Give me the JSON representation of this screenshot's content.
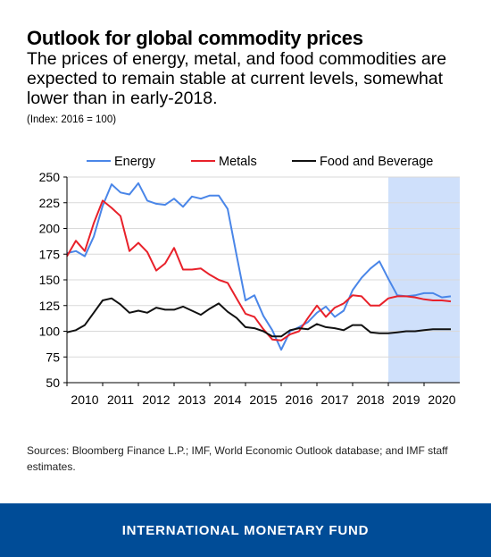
{
  "header": {
    "title": "Outlook for global commodity prices",
    "subtitle": "The prices of energy, metal, and food commodities are expected to remain stable at current levels, somewhat lower than in early-2018.",
    "note": "(Index: 2016 = 100)"
  },
  "chart_data": {
    "type": "line",
    "x_unit": "quarter",
    "x_ticks": [
      "2010",
      "2011",
      "2012",
      "2013",
      "2014",
      "2015",
      "2016",
      "2017",
      "2018",
      "2019",
      "2020"
    ],
    "ylim": [
      50,
      250
    ],
    "y_ticks": [
      50,
      75,
      100,
      125,
      150,
      175,
      200,
      225,
      250
    ],
    "forecast_start": "2019Q1",
    "forecast_end": "2020Q4",
    "forecast_color": "#cfe0fb",
    "legend_position": "top",
    "series": [
      {
        "name": "Energy",
        "color": "#4a86e8",
        "x": [
          2010.0,
          2010.25,
          2010.5,
          2010.75,
          2011.0,
          2011.25,
          2011.5,
          2011.75,
          2012.0,
          2012.25,
          2012.5,
          2012.75,
          2013.0,
          2013.25,
          2013.5,
          2013.75,
          2014.0,
          2014.25,
          2014.5,
          2014.75,
          2015.0,
          2015.25,
          2015.5,
          2015.75,
          2016.0,
          2016.25,
          2016.5,
          2016.75,
          2017.0,
          2017.25,
          2017.5,
          2017.75,
          2018.0,
          2018.25,
          2018.5,
          2018.75,
          2019.0,
          2019.25,
          2019.5,
          2019.75,
          2020.0,
          2020.25,
          2020.5,
          2020.75
        ],
        "values": [
          176,
          178,
          173,
          192,
          222,
          243,
          235,
          233,
          244,
          227,
          224,
          223,
          229,
          221,
          231,
          229,
          232,
          232,
          219,
          174,
          130,
          135,
          115,
          101,
          82,
          100,
          104,
          109,
          118,
          124,
          114,
          120,
          140,
          152,
          161,
          168,
          151,
          135,
          134,
          135,
          137,
          137,
          133,
          134
        ]
      },
      {
        "name": "Metals",
        "color": "#e8212a",
        "x": [
          2010.0,
          2010.25,
          2010.5,
          2010.75,
          2011.0,
          2011.25,
          2011.5,
          2011.75,
          2012.0,
          2012.25,
          2012.5,
          2012.75,
          2013.0,
          2013.25,
          2013.5,
          2013.75,
          2014.0,
          2014.25,
          2014.5,
          2014.75,
          2015.0,
          2015.25,
          2015.5,
          2015.75,
          2016.0,
          2016.25,
          2016.5,
          2016.75,
          2017.0,
          2017.25,
          2017.5,
          2017.75,
          2018.0,
          2018.25,
          2018.5,
          2018.75,
          2019.0,
          2019.25,
          2019.5,
          2019.75,
          2020.0,
          2020.25,
          2020.5,
          2020.75
        ],
        "values": [
          173,
          188,
          178,
          205,
          227,
          220,
          212,
          178,
          186,
          177,
          159,
          166,
          181,
          160,
          160,
          161,
          155,
          150,
          147,
          132,
          117,
          114,
          102,
          92,
          91,
          97,
          100,
          113,
          125,
          114,
          123,
          127,
          135,
          134,
          125,
          125,
          132,
          134,
          134,
          133,
          131,
          130,
          130,
          129
        ]
      },
      {
        "name": "Food and Beverage",
        "color": "#111111",
        "x": [
          2010.0,
          2010.25,
          2010.5,
          2010.75,
          2011.0,
          2011.25,
          2011.5,
          2011.75,
          2012.0,
          2012.25,
          2012.5,
          2012.75,
          2013.0,
          2013.25,
          2013.5,
          2013.75,
          2014.0,
          2014.25,
          2014.5,
          2014.75,
          2015.0,
          2015.25,
          2015.5,
          2015.75,
          2016.0,
          2016.25,
          2016.5,
          2016.75,
          2017.0,
          2017.25,
          2017.5,
          2017.75,
          2018.0,
          2018.25,
          2018.5,
          2018.75,
          2019.0,
          2019.25,
          2019.5,
          2019.75,
          2020.0,
          2020.25,
          2020.5,
          2020.75
        ],
        "values": [
          99,
          101,
          106,
          118,
          130,
          132,
          126,
          118,
          120,
          118,
          123,
          121,
          121,
          124,
          120,
          116,
          122,
          127,
          119,
          113,
          104,
          103,
          100,
          95,
          95,
          101,
          103,
          102,
          107,
          104,
          103,
          101,
          106,
          106,
          99,
          98,
          98,
          99,
          100,
          100,
          101,
          102,
          102,
          102
        ]
      }
    ]
  },
  "source": "Sources: Bloomberg Finance L.P.; IMF, World Economic Outlook database; and IMF staff estimates.",
  "footer": {
    "org_name": "INTERNATIONAL MONETARY FUND",
    "background": "#004c97"
  }
}
